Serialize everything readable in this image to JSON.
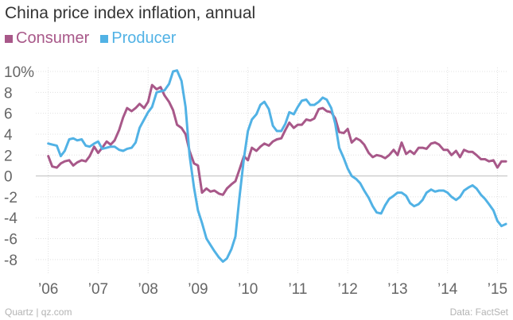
{
  "chart_data": {
    "type": "line",
    "title": "China price index inflation, annual",
    "ylabel": "",
    "xlabel": "",
    "ylim": [
      -9,
      10
    ],
    "xlim": [
      2005.75,
      2015.2
    ],
    "y_ticks": [
      10,
      8,
      6,
      4,
      2,
      0,
      -2,
      -4,
      -6,
      -8
    ],
    "y_tick_labels": [
      "10%",
      "8",
      "6",
      "4",
      "2",
      "0",
      "-2",
      "-4",
      "-6",
      "-8"
    ],
    "x_ticks": [
      2006,
      2007,
      2008,
      2009,
      2010,
      2011,
      2012,
      2013,
      2014,
      2015
    ],
    "x_tick_labels": [
      "’06",
      "’07",
      "’08",
      "’09",
      "’10",
      "’11",
      "’12",
      "’13",
      "’14",
      "’15"
    ],
    "series": [
      {
        "name": "Consumer",
        "color": "#a85889",
        "x": [
          2006.0,
          2006.08,
          2006.17,
          2006.25,
          2006.33,
          2006.42,
          2006.5,
          2006.58,
          2006.67,
          2006.75,
          2006.83,
          2006.92,
          2007.0,
          2007.08,
          2007.17,
          2007.25,
          2007.33,
          2007.42,
          2007.5,
          2007.58,
          2007.67,
          2007.75,
          2007.83,
          2007.92,
          2008.0,
          2008.08,
          2008.17,
          2008.25,
          2008.33,
          2008.42,
          2008.5,
          2008.58,
          2008.67,
          2008.75,
          2008.83,
          2008.92,
          2009.0,
          2009.08,
          2009.17,
          2009.25,
          2009.33,
          2009.42,
          2009.5,
          2009.58,
          2009.67,
          2009.75,
          2009.83,
          2009.92,
          2010.0,
          2010.08,
          2010.17,
          2010.25,
          2010.33,
          2010.42,
          2010.5,
          2010.58,
          2010.67,
          2010.75,
          2010.83,
          2010.92,
          2011.0,
          2011.08,
          2011.17,
          2011.25,
          2011.33,
          2011.42,
          2011.5,
          2011.58,
          2011.67,
          2011.75,
          2011.83,
          2011.92,
          2012.0,
          2012.08,
          2012.17,
          2012.25,
          2012.33,
          2012.42,
          2012.5,
          2012.58,
          2012.67,
          2012.75,
          2012.83,
          2012.92,
          2013.0,
          2013.08,
          2013.17,
          2013.25,
          2013.33,
          2013.42,
          2013.5,
          2013.58,
          2013.67,
          2013.75,
          2013.83,
          2013.92,
          2014.0,
          2014.08,
          2014.17,
          2014.25,
          2014.33,
          2014.42,
          2014.5,
          2014.58,
          2014.67,
          2014.75,
          2014.83,
          2014.92,
          2015.0,
          2015.08,
          2015.17
        ],
        "values": [
          1.9,
          0.9,
          0.8,
          1.2,
          1.4,
          1.5,
          1.0,
          1.3,
          1.5,
          1.4,
          1.9,
          2.8,
          2.2,
          2.7,
          3.3,
          3.0,
          3.4,
          4.4,
          5.6,
          6.5,
          6.2,
          6.5,
          6.9,
          6.5,
          7.1,
          8.7,
          8.3,
          8.5,
          7.7,
          7.1,
          6.3,
          4.9,
          4.6,
          4.0,
          2.4,
          1.2,
          1.0,
          -1.6,
          -1.2,
          -1.5,
          -1.4,
          -1.7,
          -1.8,
          -1.2,
          -0.8,
          -0.5,
          0.6,
          1.9,
          1.5,
          2.7,
          2.4,
          2.8,
          3.1,
          2.9,
          3.3,
          3.5,
          3.6,
          4.4,
          5.1,
          4.6,
          4.9,
          4.9,
          5.4,
          5.3,
          5.5,
          6.4,
          6.5,
          6.2,
          6.1,
          5.5,
          4.2,
          4.1,
          4.5,
          3.2,
          3.6,
          3.4,
          3.0,
          2.2,
          1.8,
          2.0,
          1.9,
          1.7,
          2.0,
          2.5,
          2.0,
          3.2,
          2.1,
          2.4,
          2.1,
          2.7,
          2.7,
          2.6,
          3.1,
          3.2,
          3.0,
          2.5,
          2.5,
          2.0,
          2.4,
          1.8,
          2.5,
          2.3,
          2.3,
          2.0,
          1.6,
          1.6,
          1.4,
          1.5,
          0.8,
          1.4,
          1.4
        ]
      },
      {
        "name": "Producer",
        "color": "#51b2e5",
        "x": [
          2006.0,
          2006.08,
          2006.17,
          2006.25,
          2006.33,
          2006.42,
          2006.5,
          2006.58,
          2006.67,
          2006.75,
          2006.83,
          2006.92,
          2007.0,
          2007.08,
          2007.17,
          2007.25,
          2007.33,
          2007.42,
          2007.5,
          2007.58,
          2007.67,
          2007.75,
          2007.83,
          2007.92,
          2008.0,
          2008.08,
          2008.17,
          2008.25,
          2008.33,
          2008.42,
          2008.5,
          2008.58,
          2008.67,
          2008.75,
          2008.83,
          2008.92,
          2009.0,
          2009.08,
          2009.17,
          2009.25,
          2009.33,
          2009.42,
          2009.5,
          2009.58,
          2009.67,
          2009.75,
          2009.83,
          2009.92,
          2010.0,
          2010.08,
          2010.17,
          2010.25,
          2010.33,
          2010.42,
          2010.5,
          2010.58,
          2010.67,
          2010.75,
          2010.83,
          2010.92,
          2011.0,
          2011.08,
          2011.17,
          2011.25,
          2011.33,
          2011.42,
          2011.5,
          2011.58,
          2011.67,
          2011.75,
          2011.83,
          2011.92,
          2012.0,
          2012.08,
          2012.17,
          2012.25,
          2012.33,
          2012.42,
          2012.5,
          2012.58,
          2012.67,
          2012.75,
          2012.83,
          2012.92,
          2013.0,
          2013.08,
          2013.17,
          2013.25,
          2013.33,
          2013.42,
          2013.5,
          2013.58,
          2013.67,
          2013.75,
          2013.83,
          2013.92,
          2014.0,
          2014.08,
          2014.17,
          2014.25,
          2014.33,
          2014.42,
          2014.5,
          2014.58,
          2014.67,
          2014.75,
          2014.83,
          2014.92,
          2015.0,
          2015.08,
          2015.17
        ],
        "values": [
          3.1,
          3.0,
          2.9,
          1.9,
          2.4,
          3.5,
          3.6,
          3.4,
          3.5,
          2.9,
          2.8,
          3.1,
          3.3,
          2.6,
          2.7,
          2.8,
          2.8,
          2.5,
          2.4,
          2.6,
          2.7,
          3.2,
          4.6,
          5.4,
          6.1,
          6.6,
          8.0,
          8.1,
          8.2,
          8.8,
          10.0,
          10.1,
          9.1,
          6.6,
          2.0,
          -1.1,
          -3.3,
          -4.5,
          -6.0,
          -6.6,
          -7.2,
          -7.8,
          -8.2,
          -7.9,
          -7.0,
          -5.8,
          -2.1,
          1.7,
          4.3,
          5.4,
          5.9,
          6.8,
          7.1,
          6.4,
          4.8,
          4.3,
          4.3,
          5.0,
          6.1,
          5.9,
          6.6,
          7.2,
          7.3,
          6.8,
          6.8,
          7.1,
          7.5,
          7.3,
          6.5,
          5.0,
          2.7,
          1.7,
          0.7,
          0.0,
          -0.3,
          -0.7,
          -1.4,
          -2.1,
          -2.9,
          -3.5,
          -3.6,
          -2.8,
          -2.2,
          -1.9,
          -1.6,
          -1.6,
          -1.9,
          -2.6,
          -2.9,
          -2.7,
          -2.3,
          -1.6,
          -1.3,
          -1.5,
          -1.4,
          -1.4,
          -1.6,
          -2.0,
          -2.3,
          -2.0,
          -1.4,
          -1.1,
          -0.9,
          -1.2,
          -1.8,
          -2.2,
          -2.7,
          -3.3,
          -4.3,
          -4.8,
          -4.6
        ]
      }
    ]
  },
  "footer": {
    "source_left": "Quartz | qz.com",
    "source_right": "Data: FactSet"
  }
}
